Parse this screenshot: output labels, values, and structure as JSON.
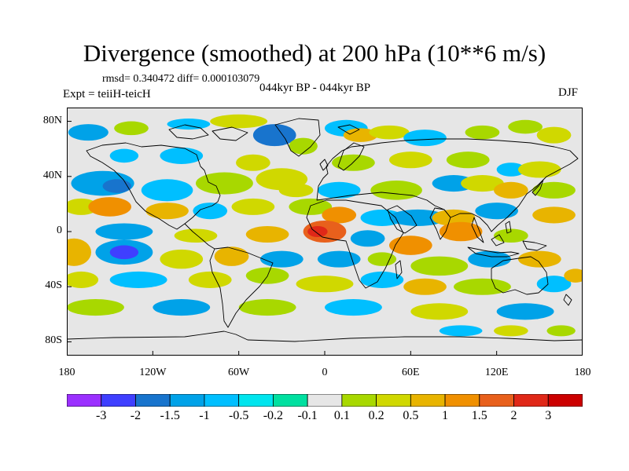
{
  "title": "Divergence (smoothed) at 200 hPa (10**6 m/s)",
  "stats": "rmsd= 0.340472 diff= 0.000103079",
  "experiment": "Expt = teiiH-teicH",
  "period": "044kyr BP - 044kyr BP",
  "season": "DJF",
  "map": {
    "background_color": "#e6e6e6",
    "lat_range": [
      -90,
      90
    ],
    "lon_range": [
      -180,
      180
    ],
    "y_ticks": [
      {
        "label": "80N",
        "value": 80
      },
      {
        "label": "40N",
        "value": 40
      },
      {
        "label": "0",
        "value": 0
      },
      {
        "label": "40S",
        "value": -40
      },
      {
        "label": "80S",
        "value": -80
      }
    ],
    "x_ticks": [
      {
        "label": "180",
        "value": -180
      },
      {
        "label": "120W",
        "value": -120
      },
      {
        "label": "60W",
        "value": -60
      },
      {
        "label": "0",
        "value": 0
      },
      {
        "label": "60E",
        "value": 60
      },
      {
        "label": "120E",
        "value": 120
      },
      {
        "label": "180",
        "value": 180
      }
    ],
    "field_features": [
      {
        "lon": -165,
        "lat": 72,
        "rx": 14,
        "ry": 6,
        "level": 3
      },
      {
        "lon": -135,
        "lat": 75,
        "rx": 12,
        "ry": 5,
        "level": 8
      },
      {
        "lon": -95,
        "lat": 78,
        "rx": 15,
        "ry": 4,
        "level": 4
      },
      {
        "lon": -60,
        "lat": 80,
        "rx": 20,
        "ry": 5,
        "level": 9
      },
      {
        "lon": -35,
        "lat": 70,
        "rx": 15,
        "ry": 8,
        "level": 2
      },
      {
        "lon": -15,
        "lat": 62,
        "rx": 10,
        "ry": 6,
        "level": 8
      },
      {
        "lon": 15,
        "lat": 75,
        "rx": 15,
        "ry": 6,
        "level": 4
      },
      {
        "lon": 25,
        "lat": 70,
        "rx": 12,
        "ry": 5,
        "level": 10
      },
      {
        "lon": 45,
        "lat": 72,
        "rx": 14,
        "ry": 5,
        "level": 9
      },
      {
        "lon": 70,
        "lat": 68,
        "rx": 15,
        "ry": 6,
        "level": 4
      },
      {
        "lon": 110,
        "lat": 72,
        "rx": 12,
        "ry": 5,
        "level": 8
      },
      {
        "lon": 140,
        "lat": 76,
        "rx": 12,
        "ry": 5,
        "level": 8
      },
      {
        "lon": 160,
        "lat": 70,
        "rx": 12,
        "ry": 6,
        "level": 9
      },
      {
        "lon": -140,
        "lat": 55,
        "rx": 10,
        "ry": 5,
        "level": 4
      },
      {
        "lon": -100,
        "lat": 55,
        "rx": 15,
        "ry": 6,
        "level": 4
      },
      {
        "lon": -50,
        "lat": 50,
        "rx": 12,
        "ry": 6,
        "level": 9
      },
      {
        "lon": 20,
        "lat": 50,
        "rx": 15,
        "ry": 6,
        "level": 8
      },
      {
        "lon": 60,
        "lat": 52,
        "rx": 15,
        "ry": 6,
        "level": 9
      },
      {
        "lon": 100,
        "lat": 52,
        "rx": 15,
        "ry": 6,
        "level": 8
      },
      {
        "lon": 130,
        "lat": 45,
        "rx": 10,
        "ry": 5,
        "level": 4
      },
      {
        "lon": 150,
        "lat": 45,
        "rx": 15,
        "ry": 6,
        "level": 9
      },
      {
        "lon": -155,
        "lat": 35,
        "rx": 22,
        "ry": 9,
        "level": 3
      },
      {
        "lon": -145,
        "lat": 33,
        "rx": 10,
        "ry": 5,
        "level": 2
      },
      {
        "lon": -110,
        "lat": 30,
        "rx": 18,
        "ry": 8,
        "level": 4
      },
      {
        "lon": -70,
        "lat": 35,
        "rx": 20,
        "ry": 8,
        "level": 8
      },
      {
        "lon": -30,
        "lat": 38,
        "rx": 18,
        "ry": 8,
        "level": 9
      },
      {
        "lon": -20,
        "lat": 30,
        "rx": 12,
        "ry": 5,
        "level": 9
      },
      {
        "lon": 10,
        "lat": 30,
        "rx": 15,
        "ry": 6,
        "level": 4
      },
      {
        "lon": 50,
        "lat": 30,
        "rx": 18,
        "ry": 7,
        "level": 8
      },
      {
        "lon": 90,
        "lat": 35,
        "rx": 15,
        "ry": 6,
        "level": 3
      },
      {
        "lon": 110,
        "lat": 35,
        "rx": 15,
        "ry": 6,
        "level": 9
      },
      {
        "lon": 130,
        "lat": 30,
        "rx": 12,
        "ry": 6,
        "level": 10
      },
      {
        "lon": 160,
        "lat": 30,
        "rx": 15,
        "ry": 6,
        "level": 8
      },
      {
        "lon": -170,
        "lat": 18,
        "rx": 12,
        "ry": 6,
        "level": 9
      },
      {
        "lon": -150,
        "lat": 18,
        "rx": 15,
        "ry": 7,
        "level": 11
      },
      {
        "lon": -110,
        "lat": 15,
        "rx": 15,
        "ry": 6,
        "level": 10
      },
      {
        "lon": -80,
        "lat": 15,
        "rx": 12,
        "ry": 6,
        "level": 4
      },
      {
        "lon": -50,
        "lat": 18,
        "rx": 15,
        "ry": 6,
        "level": 9
      },
      {
        "lon": -10,
        "lat": 18,
        "rx": 15,
        "ry": 6,
        "level": 8
      },
      {
        "lon": 10,
        "lat": 12,
        "rx": 12,
        "ry": 6,
        "level": 11
      },
      {
        "lon": 40,
        "lat": 10,
        "rx": 15,
        "ry": 6,
        "level": 4
      },
      {
        "lon": 65,
        "lat": 10,
        "rx": 20,
        "ry": 6,
        "level": 3
      },
      {
        "lon": 90,
        "lat": 10,
        "rx": 15,
        "ry": 6,
        "level": 10
      },
      {
        "lon": 120,
        "lat": 15,
        "rx": 15,
        "ry": 6,
        "level": 3
      },
      {
        "lon": 160,
        "lat": 12,
        "rx": 15,
        "ry": 6,
        "level": 10
      },
      {
        "lon": -140,
        "lat": 0,
        "rx": 20,
        "ry": 6,
        "level": 3
      },
      {
        "lon": -90,
        "lat": -3,
        "rx": 15,
        "ry": 5,
        "level": 9
      },
      {
        "lon": -40,
        "lat": -2,
        "rx": 15,
        "ry": 6,
        "level": 10
      },
      {
        "lon": 0,
        "lat": 0,
        "rx": 15,
        "ry": 8,
        "level": 12
      },
      {
        "lon": -5,
        "lat": 0,
        "rx": 7,
        "ry": 4,
        "level": 13
      },
      {
        "lon": 30,
        "lat": -5,
        "rx": 12,
        "ry": 6,
        "level": 3
      },
      {
        "lon": 60,
        "lat": -10,
        "rx": 15,
        "ry": 7,
        "level": 11
      },
      {
        "lon": 95,
        "lat": 0,
        "rx": 15,
        "ry": 7,
        "level": 11
      },
      {
        "lon": 130,
        "lat": -3,
        "rx": 12,
        "ry": 5,
        "level": 8
      },
      {
        "lon": -175,
        "lat": -15,
        "rx": 12,
        "ry": 10,
        "level": 10
      },
      {
        "lon": -140,
        "lat": -15,
        "rx": 20,
        "ry": 9,
        "level": 3
      },
      {
        "lon": -140,
        "lat": -15,
        "rx": 10,
        "ry": 5,
        "level": 1
      },
      {
        "lon": -100,
        "lat": -20,
        "rx": 15,
        "ry": 7,
        "level": 9
      },
      {
        "lon": -65,
        "lat": -18,
        "rx": 12,
        "ry": 7,
        "level": 10
      },
      {
        "lon": -30,
        "lat": -20,
        "rx": 15,
        "ry": 6,
        "level": 3
      },
      {
        "lon": 10,
        "lat": -20,
        "rx": 15,
        "ry": 6,
        "level": 3
      },
      {
        "lon": 40,
        "lat": -20,
        "rx": 10,
        "ry": 5,
        "level": 8
      },
      {
        "lon": 80,
        "lat": -25,
        "rx": 20,
        "ry": 7,
        "level": 8
      },
      {
        "lon": 115,
        "lat": -20,
        "rx": 15,
        "ry": 6,
        "level": 3
      },
      {
        "lon": 150,
        "lat": -20,
        "rx": 15,
        "ry": 6,
        "level": 10
      },
      {
        "lon": -170,
        "lat": -35,
        "rx": 12,
        "ry": 6,
        "level": 9
      },
      {
        "lon": -130,
        "lat": -35,
        "rx": 20,
        "ry": 6,
        "level": 4
      },
      {
        "lon": -80,
        "lat": -35,
        "rx": 15,
        "ry": 6,
        "level": 9
      },
      {
        "lon": -40,
        "lat": -32,
        "rx": 15,
        "ry": 6,
        "level": 8
      },
      {
        "lon": 0,
        "lat": -38,
        "rx": 20,
        "ry": 6,
        "level": 9
      },
      {
        "lon": 40,
        "lat": -35,
        "rx": 15,
        "ry": 6,
        "level": 4
      },
      {
        "lon": 70,
        "lat": -40,
        "rx": 15,
        "ry": 6,
        "level": 10
      },
      {
        "lon": 110,
        "lat": -40,
        "rx": 20,
        "ry": 6,
        "level": 8
      },
      {
        "lon": 160,
        "lat": -38,
        "rx": 12,
        "ry": 6,
        "level": 4
      },
      {
        "lon": 175,
        "lat": -32,
        "rx": 8,
        "ry": 5,
        "level": 10
      },
      {
        "lon": -160,
        "lat": -55,
        "rx": 20,
        "ry": 6,
        "level": 8
      },
      {
        "lon": -100,
        "lat": -55,
        "rx": 20,
        "ry": 6,
        "level": 3
      },
      {
        "lon": -40,
        "lat": -55,
        "rx": 20,
        "ry": 6,
        "level": 8
      },
      {
        "lon": 20,
        "lat": -55,
        "rx": 20,
        "ry": 6,
        "level": 4
      },
      {
        "lon": 80,
        "lat": -58,
        "rx": 20,
        "ry": 6,
        "level": 9
      },
      {
        "lon": 140,
        "lat": -58,
        "rx": 20,
        "ry": 6,
        "level": 3
      },
      {
        "lon": 95,
        "lat": -72,
        "rx": 15,
        "ry": 4,
        "level": 4
      },
      {
        "lon": 130,
        "lat": -72,
        "rx": 12,
        "ry": 4,
        "level": 9
      },
      {
        "lon": 165,
        "lat": -72,
        "rx": 10,
        "ry": 4,
        "level": 8
      }
    ]
  },
  "colorbar": {
    "colors": [
      "#9b30ff",
      "#3f3fff",
      "#1874cd",
      "#00a2e8",
      "#00bfff",
      "#00e5ee",
      "#00e0a0",
      "#e6e6e6",
      "#a8d800",
      "#d0d800",
      "#e8b400",
      "#f09000",
      "#e8601c",
      "#e02818",
      "#cc0000"
    ],
    "labels": [
      "-3",
      "-2",
      "-1.5",
      "-1",
      "-0.5",
      "-0.2",
      "-0.1",
      "0.1",
      "0.2",
      "0.5",
      "1",
      "1.5",
      "2",
      "3"
    ]
  }
}
